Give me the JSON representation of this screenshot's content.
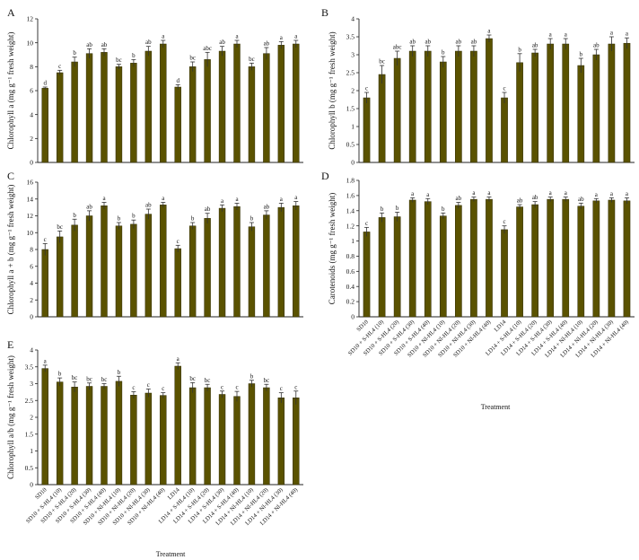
{
  "chart_data": [
    {
      "panel": "A",
      "type": "bar",
      "ylabel": "Chlorophyll a (mg g⁻¹ fresh weight)",
      "ylim": [
        0,
        12
      ],
      "yticks": [
        0,
        2,
        4,
        6,
        8,
        10,
        12
      ],
      "values": [
        6.2,
        7.5,
        8.4,
        9.1,
        9.2,
        8.0,
        8.3,
        9.3,
        9.9,
        6.3,
        8.0,
        8.6,
        9.3,
        9.9,
        8.0,
        9.1,
        9.8,
        9.9
      ],
      "errors": [
        0.1,
        0.2,
        0.4,
        0.4,
        0.3,
        0.2,
        0.3,
        0.4,
        0.3,
        0.2,
        0.4,
        0.6,
        0.4,
        0.3,
        0.3,
        0.5,
        0.3,
        0.3
      ],
      "significance": [
        "d",
        "c",
        "b",
        "ab",
        "ab",
        "bc",
        "b",
        "ab",
        "a",
        "d",
        "bc",
        "abc",
        "ab",
        "a",
        "bc",
        "ab",
        "a",
        "a"
      ],
      "bar_color": "#5a5200"
    },
    {
      "panel": "B",
      "type": "bar",
      "ylabel": "Chlorophyll b (mg g⁻¹ fresh weight)",
      "ylim": [
        0,
        4
      ],
      "yticks": [
        0,
        0.5,
        1,
        1.5,
        2,
        2.5,
        3,
        3.5,
        4
      ],
      "values": [
        1.8,
        2.45,
        2.9,
        3.1,
        3.1,
        2.8,
        3.1,
        3.1,
        3.45,
        1.8,
        2.78,
        3.05,
        3.3,
        3.3,
        2.7,
        3.0,
        3.3,
        3.32
      ],
      "errors": [
        0.15,
        0.25,
        0.2,
        0.15,
        0.15,
        0.15,
        0.15,
        0.15,
        0.1,
        0.15,
        0.25,
        0.1,
        0.15,
        0.15,
        0.2,
        0.15,
        0.2,
        0.15
      ],
      "significance": [
        "c",
        "bc",
        "abc",
        "ab",
        "ab",
        "b",
        "ab",
        "ab",
        "a",
        "c",
        "b",
        "ab",
        "a",
        "a",
        "b",
        "ab",
        "a",
        "a"
      ],
      "bar_color": "#5a5200"
    },
    {
      "panel": "C",
      "type": "bar",
      "ylabel": "Chlorophyll a + b (mg g⁻¹ fresh weight)",
      "ylim": [
        0,
        16
      ],
      "yticks": [
        0,
        2,
        4,
        6,
        8,
        10,
        12,
        14,
        16
      ],
      "values": [
        8.0,
        9.5,
        10.9,
        12.0,
        13.2,
        10.8,
        11.0,
        12.2,
        13.3,
        8.1,
        10.8,
        11.7,
        12.9,
        13.1,
        10.7,
        12.1,
        13.0,
        13.2
      ],
      "errors": [
        0.7,
        0.7,
        0.7,
        0.6,
        0.4,
        0.4,
        0.5,
        0.6,
        0.3,
        0.4,
        0.4,
        0.6,
        0.4,
        0.4,
        0.5,
        0.5,
        0.5,
        0.5
      ],
      "significance": [
        "c",
        "bc",
        "b",
        "ab",
        "a",
        "b",
        "b",
        "ab",
        "a",
        "c",
        "b",
        "ab",
        "a",
        "a",
        "b",
        "ab",
        "a",
        "a"
      ],
      "bar_color": "#5a5200"
    },
    {
      "panel": "D",
      "type": "bar",
      "ylabel": "Carotenoids (mg g⁻¹ fresh weight)",
      "ylim": [
        0,
        1.8
      ],
      "yticks": [
        0,
        0.2,
        0.4,
        0.6,
        0.8,
        1,
        1.2,
        1.4,
        1.6,
        1.8
      ],
      "values": [
        1.12,
        1.31,
        1.32,
        1.54,
        1.52,
        1.33,
        1.47,
        1.55,
        1.55,
        1.15,
        1.45,
        1.48,
        1.55,
        1.55,
        1.46,
        1.53,
        1.54,
        1.53
      ],
      "errors": [
        0.06,
        0.06,
        0.06,
        0.03,
        0.04,
        0.04,
        0.04,
        0.03,
        0.03,
        0.05,
        0.03,
        0.04,
        0.03,
        0.03,
        0.04,
        0.03,
        0.03,
        0.04
      ],
      "significance": [
        "c",
        "b",
        "b",
        "a",
        "a",
        "b",
        "ab",
        "a",
        "a",
        "c",
        "ab",
        "ab",
        "a",
        "a",
        "ab",
        "a",
        "a",
        "a"
      ],
      "bar_color": "#5a5200",
      "xlabel": "Treatment"
    },
    {
      "panel": "E",
      "type": "bar",
      "ylabel": "Chlorophyll a/b (mg g⁻¹ fresh weight)",
      "ylim": [
        0,
        4
      ],
      "yticks": [
        0,
        0.5,
        1,
        1.5,
        2,
        2.5,
        3,
        3.5,
        4
      ],
      "values": [
        3.45,
        3.05,
        2.9,
        2.92,
        2.92,
        3.07,
        2.66,
        2.72,
        2.65,
        3.52,
        2.88,
        2.88,
        2.68,
        2.62,
        3.0,
        2.88,
        2.58,
        2.58
      ],
      "errors": [
        0.1,
        0.12,
        0.15,
        0.1,
        0.08,
        0.15,
        0.1,
        0.12,
        0.08,
        0.1,
        0.15,
        0.1,
        0.1,
        0.15,
        0.1,
        0.1,
        0.15,
        0.2
      ],
      "significance": [
        "a",
        "b",
        "bc",
        "bc",
        "bc",
        "b",
        "c",
        "c",
        "c",
        "a",
        "bc",
        "bc",
        "c",
        "c",
        "b",
        "bc",
        "c",
        "c"
      ],
      "bar_color": "#5a5200",
      "xlabel": "Treatment"
    }
  ],
  "categories": [
    "SD10",
    "SD10 + S-HL4 (10)",
    "SD10 + S-HL4 (20)",
    "SD10 + S-HL4 (30)",
    "SD10 + S-HL4 (40)",
    "SD10 + Nl-HL4 (10)",
    "SD10 + Nl-HL4 (20)",
    "SD10 + Nl-HL4 (30)",
    "SD10 + Nl-HL4 (40)",
    "LD14",
    "LD14 + S-HL4 (10)",
    "LD14 + S-HL4 (20)",
    "LD14 + S-HL4 (30)",
    "LD14 + S-HL4 (40)",
    "LD14 + Nl-HL4 (10)",
    "LD14 + Nl-HL4 (20)",
    "LD14 + Nl-HL4 (30)",
    "LD14 + Nl-HL4 (40)"
  ]
}
